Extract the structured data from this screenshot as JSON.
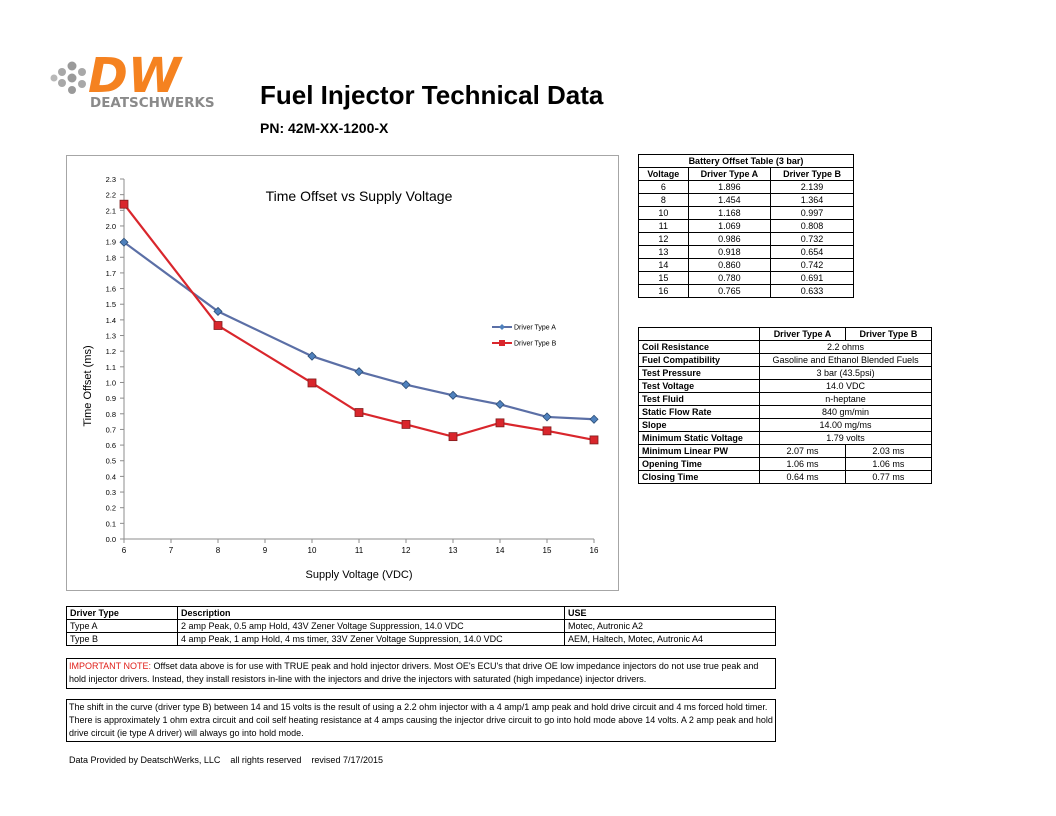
{
  "logo": {
    "mark": "DW",
    "name": "DEATSCHWERKS",
    "color": "#f58220"
  },
  "header": {
    "title": "Fuel Injector Technical Data",
    "pn": "PN: 42M-XX-1200-X"
  },
  "chart_data": {
    "type": "line",
    "title": "Time Offset vs Supply Voltage",
    "xlabel": "Supply Voltage (VDC)",
    "ylabel": "Time Offset (ms)",
    "xlim": [
      6,
      16
    ],
    "ylim": [
      0.0,
      2.3
    ],
    "x_ticks": [
      "6",
      "7",
      "8",
      "9",
      "10",
      "11",
      "12",
      "13",
      "14",
      "15",
      "16"
    ],
    "y_ticks": [
      "0.0",
      "0.1",
      "0.2",
      "0.3",
      "0.4",
      "0.5",
      "0.6",
      "0.7",
      "0.8",
      "0.9",
      "1.0",
      "1.1",
      "1.2",
      "1.3",
      "1.4",
      "1.5",
      "1.6",
      "1.7",
      "1.8",
      "1.9",
      "2.0",
      "2.1",
      "2.2",
      "2.3"
    ],
    "legend": "right",
    "grid": false,
    "series": [
      {
        "name": "Driver Type A",
        "color": "#5b6fa6",
        "marker": "diamond",
        "x": [
          6,
          8,
          10,
          11,
          12,
          13,
          14,
          15,
          16
        ],
        "values": [
          1.896,
          1.454,
          1.168,
          1.069,
          0.986,
          0.918,
          0.86,
          0.78,
          0.765
        ]
      },
      {
        "name": "Driver Type B",
        "color": "#d9262c",
        "marker": "square",
        "x": [
          6,
          8,
          10,
          11,
          12,
          13,
          14,
          15,
          16
        ],
        "values": [
          2.139,
          1.364,
          0.997,
          0.808,
          0.732,
          0.654,
          0.742,
          0.691,
          0.633
        ]
      }
    ]
  },
  "battery_table": {
    "title": "Battery Offset Table (3 bar)",
    "headers": [
      "Voltage",
      "Driver Type A",
      "Driver Type B"
    ],
    "rows": [
      [
        "6",
        "1.896",
        "2.139"
      ],
      [
        "8",
        "1.454",
        "1.364"
      ],
      [
        "10",
        "1.168",
        "0.997"
      ],
      [
        "11",
        "1.069",
        "0.808"
      ],
      [
        "12",
        "0.986",
        "0.732"
      ],
      [
        "13",
        "0.918",
        "0.654"
      ],
      [
        "14",
        "0.860",
        "0.742"
      ],
      [
        "15",
        "0.780",
        "0.691"
      ],
      [
        "16",
        "0.765",
        "0.633"
      ]
    ]
  },
  "specs_table": {
    "headers": [
      "Driver Type A",
      "Driver Type B"
    ],
    "rows": [
      {
        "label": "Coil Resistance",
        "value": "2.2 ohms"
      },
      {
        "label": "Fuel Compatibility",
        "value": "Gasoline and Ethanol Blended Fuels"
      },
      {
        "label": "Test Pressure",
        "value": "3 bar (43.5psi)"
      },
      {
        "label": "Test Voltage",
        "value": "14.0 VDC"
      },
      {
        "label": "Test Fluid",
        "value": "n-heptane"
      },
      {
        "label": "Static Flow Rate",
        "value": "840 gm/min"
      },
      {
        "label": "Slope",
        "value": "14.00 mg/ms"
      },
      {
        "label": "Minimum Static Voltage",
        "value": "1.79 volts"
      },
      {
        "label": "Minimum Linear PW",
        "a": "2.07 ms",
        "b": "2.03 ms"
      },
      {
        "label": "Opening Time",
        "a": "1.06 ms",
        "b": "1.06 ms"
      },
      {
        "label": "Closing Time",
        "a": "0.64 ms",
        "b": "0.77 ms"
      }
    ]
  },
  "driver_table": {
    "headers": [
      "Driver Type",
      "Description",
      "USE"
    ],
    "rows": [
      [
        "Type A",
        "2 amp Peak, 0.5 amp Hold, 43V Zener Voltage Suppression, 14.0 VDC",
        "Motec, Autronic A2"
      ],
      [
        "Type B",
        "4 amp Peak, 1 amp Hold, 4 ms timer, 33V Zener Voltage Suppression, 14.0 VDC",
        "AEM, Haltech, Motec, Autronic A4"
      ]
    ]
  },
  "notes": {
    "important_label": "IMPORTANT NOTE:",
    "important_color": "#e0201a",
    "important_text": " Offset data above is for use with TRUE peak and hold injector drivers.  Most OE's ECU's that drive OE low impedance injectors do not use true peak and hold injector drivers.  Instead, they install resistors in-line with the injectors and drive the injectors with saturated (high impedance) injector drivers.",
    "shift_text": "The shift in the curve (driver type B) between 14 and 15 volts is the result of using a 2.2 ohm injector with a 4 amp/1 amp peak and hold drive circuit and 4 ms forced hold timer. There is approximately 1 ohm extra circuit and coil self heating resistance at 4 amps causing the injector drive circuit to go into hold mode above 14 volts. A 2 amp peak and hold drive circuit (ie type A driver) will always go into hold mode."
  },
  "footer": "Data Provided by DeatschWerks, LLC    all rights reserved    revised 7/17/2015"
}
